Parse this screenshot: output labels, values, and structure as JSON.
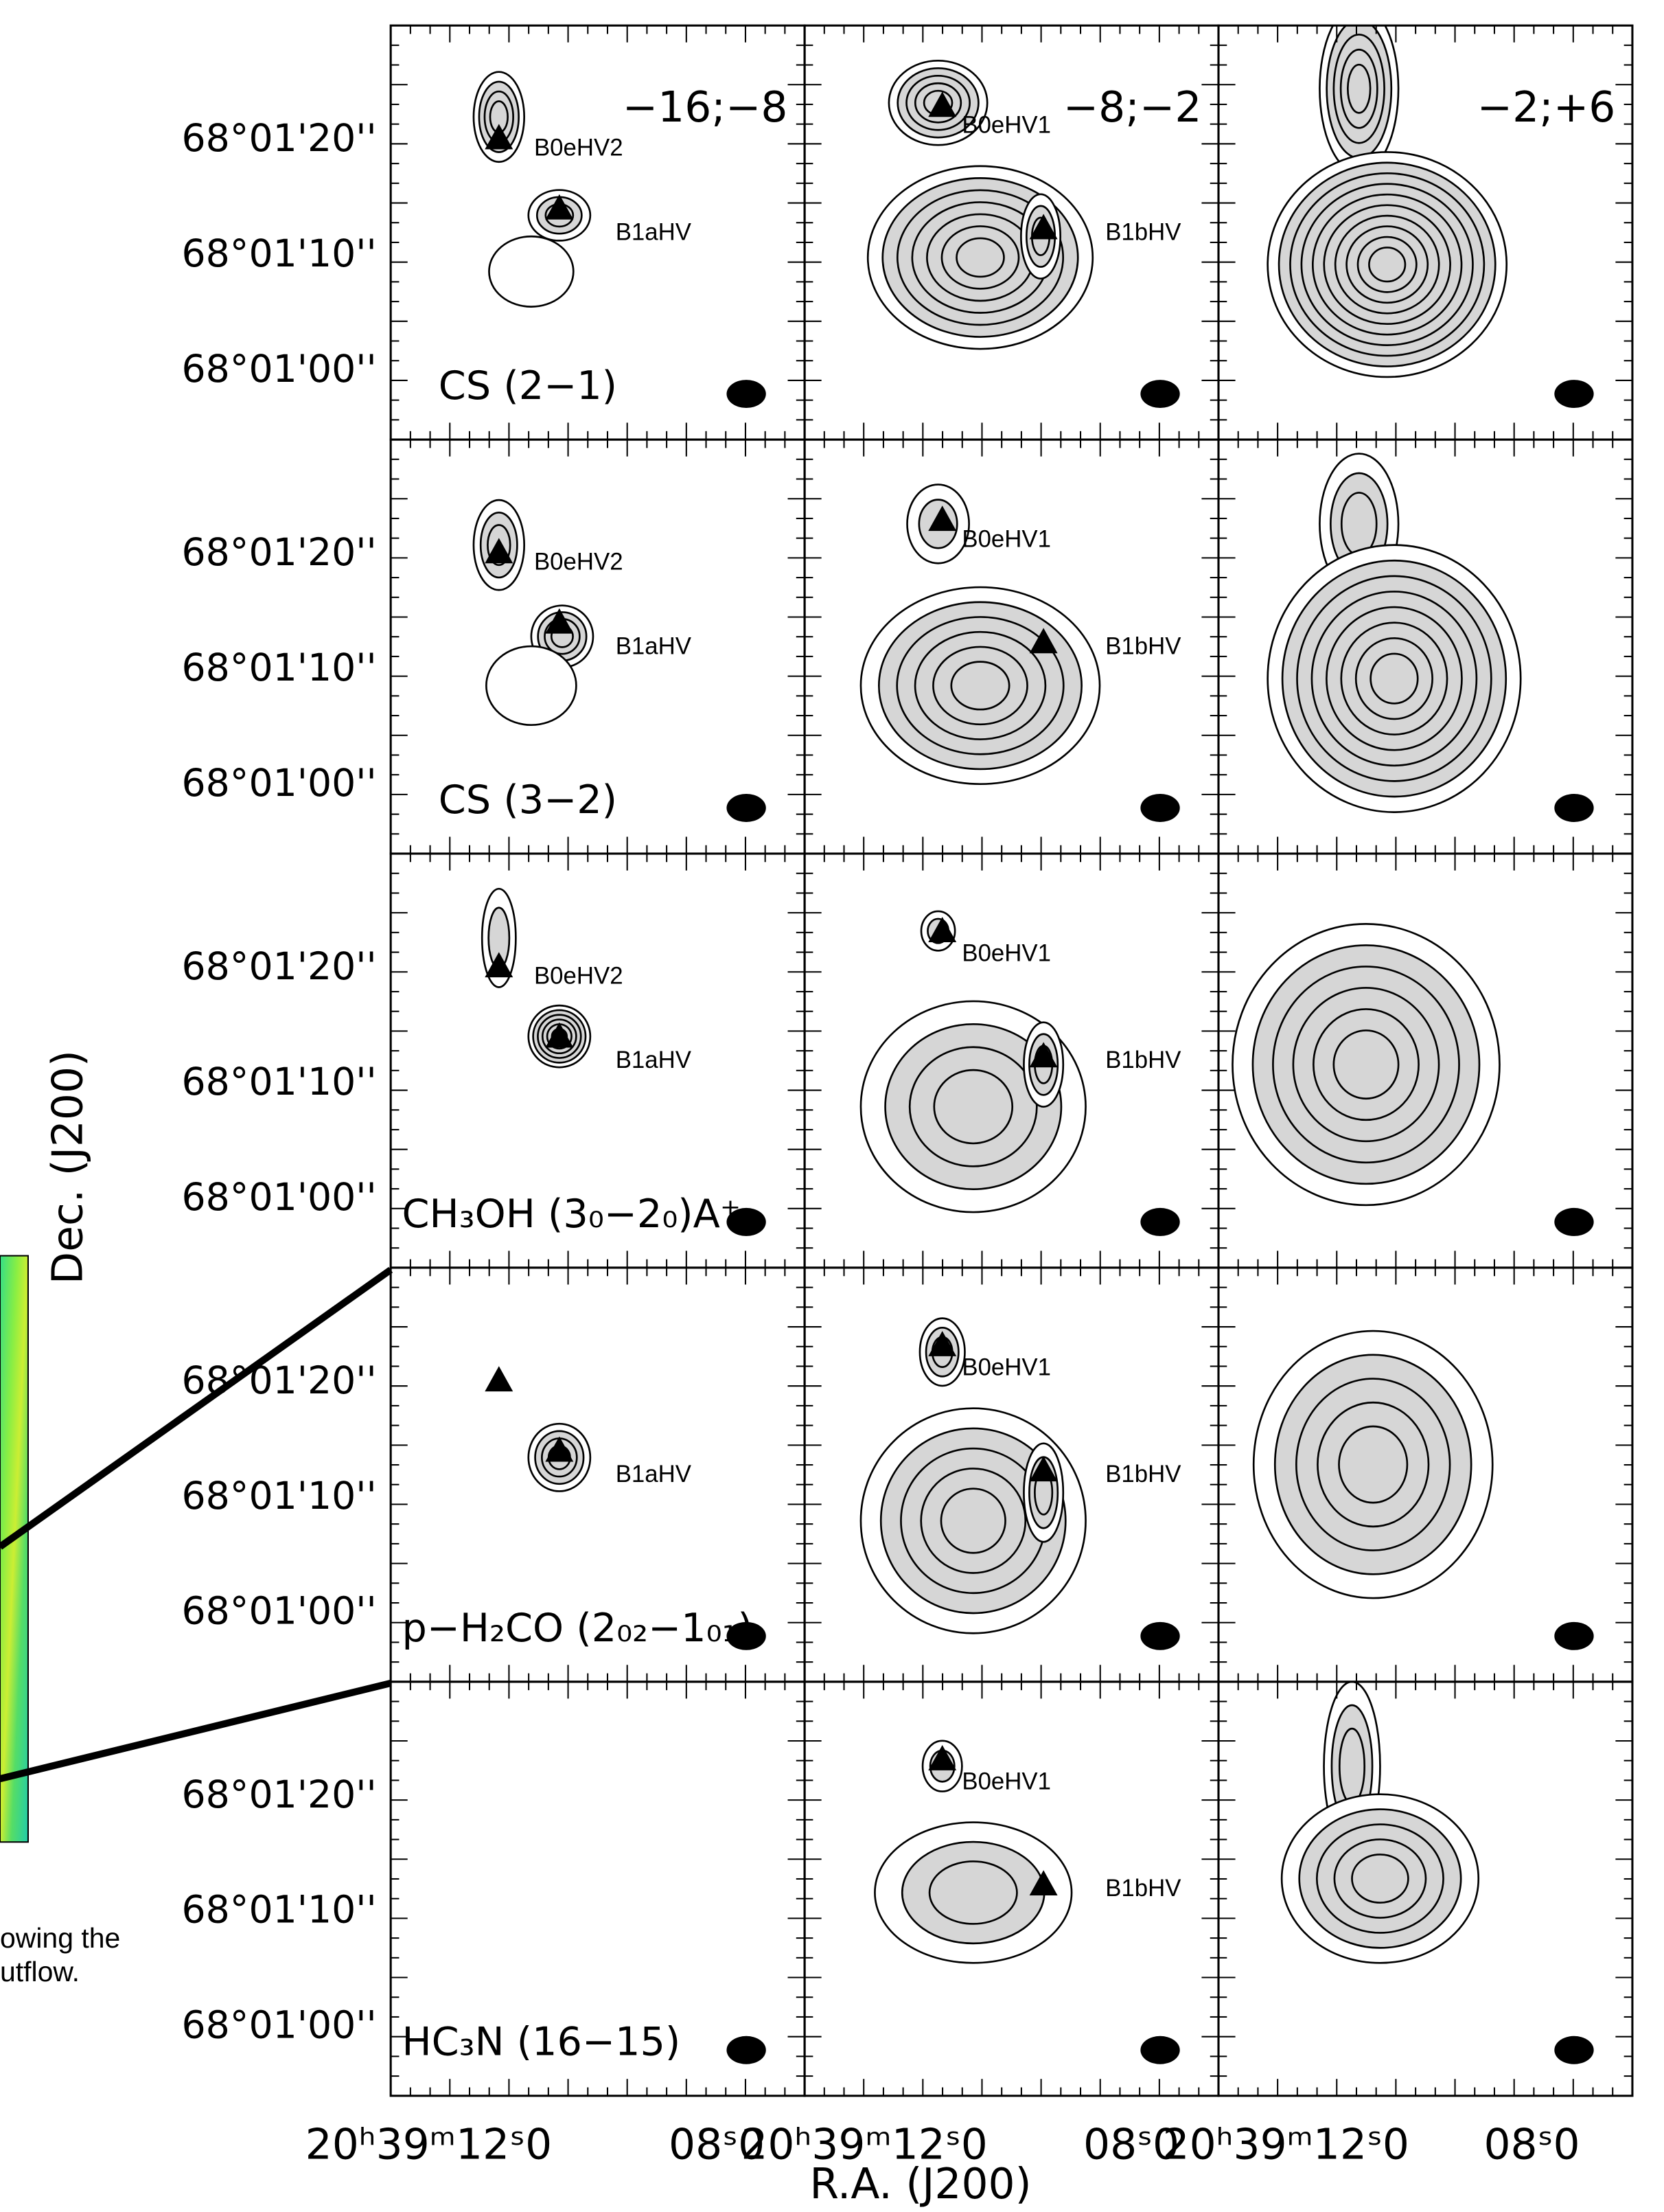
{
  "velocity_ranges": [
    "−16;−8",
    "−8;−2",
    "−2;+6"
  ],
  "rows": [
    {
      "molecule": "CS (2−1)",
      "dec_labels": [
        "68°01'20''",
        "68°01'10''",
        "68°01'00''"
      ],
      "sources": [
        [
          "B0eHV2",
          "B1aHV"
        ],
        [
          "B0eHV1",
          "B1bHV"
        ],
        []
      ]
    },
    {
      "molecule": "CS (3−2)",
      "dec_labels": [
        "68°01'20''",
        "68°01'10''",
        "68°01'00''"
      ],
      "sources": [
        [
          "B0eHV2",
          "B1aHV"
        ],
        [
          "B0eHV1",
          "B1bHV"
        ],
        []
      ]
    },
    {
      "molecule": "CH₃OH (3₀−2₀)A⁺",
      "dec_labels": [
        "68°01'20''",
        "68°01'10''",
        "68°01'00''"
      ],
      "sources": [
        [
          "B0eHV2",
          "B1aHV"
        ],
        [
          "B0eHV1",
          "B1bHV"
        ],
        []
      ]
    },
    {
      "molecule": "p−H₂CO (2₀₂−1₀₁)",
      "dec_labels": [
        "68°01'20''",
        "68°01'10''",
        "68°01'00''"
      ],
      "sources": [
        [
          "B1aHV"
        ],
        [
          "B0eHV1",
          "B1bHV"
        ],
        []
      ]
    },
    {
      "molecule": "HC₃N (16−15)",
      "dec_labels": [
        "68°01'20''",
        "68°01'10''",
        "68°01'00''"
      ],
      "sources": [
        [],
        [
          "B0eHV1",
          "B1bHV"
        ],
        []
      ]
    }
  ],
  "x_axis": {
    "label": "R.A. (J200)",
    "ticks": [
      [
        "20ʰ39ᵐ12ˢ0",
        "08ˢ0"
      ],
      [
        "20ʰ39ᵐ12ˢ0",
        "08ˢ0"
      ],
      [
        "20ʰ39ᵐ12ˢ0",
        "08ˢ0"
      ]
    ]
  },
  "y_axis_label": "Dec. (J200)",
  "side_text": [
    "owing the",
    "utflow."
  ]
}
